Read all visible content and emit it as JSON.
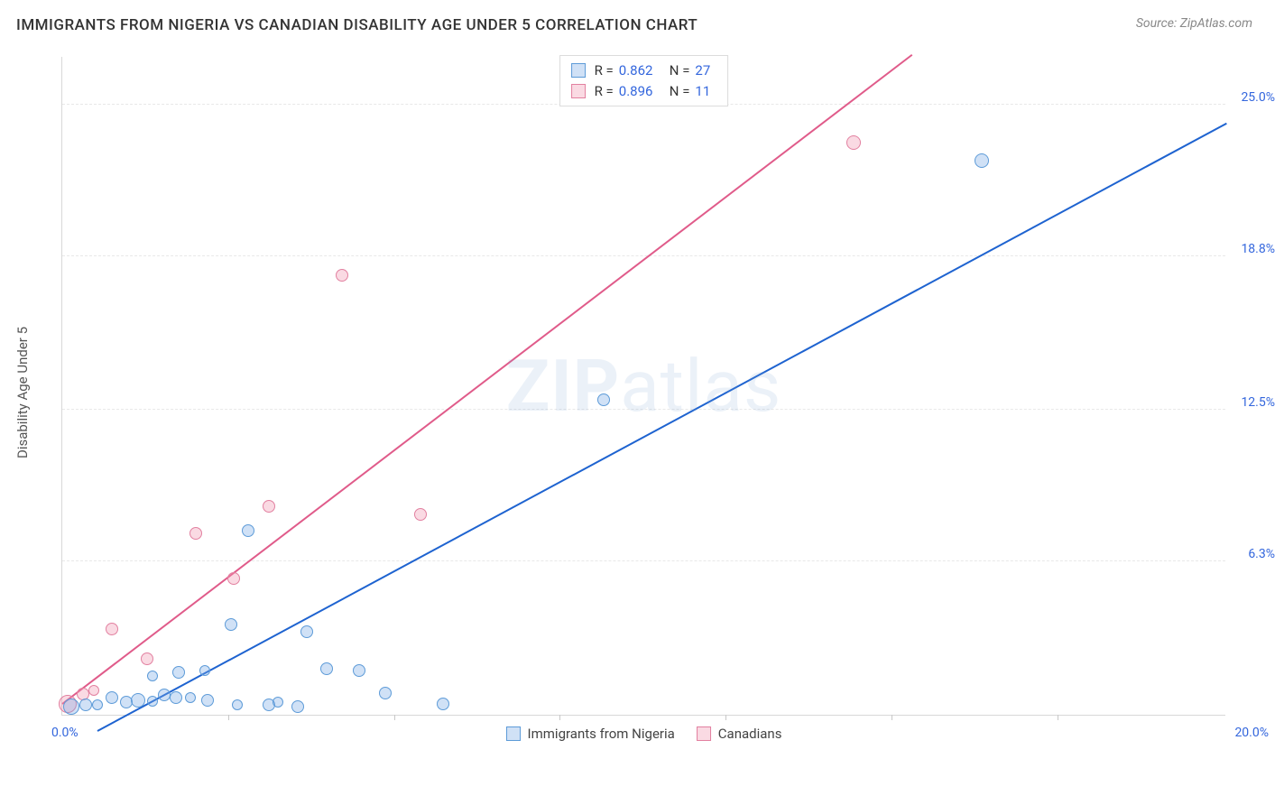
{
  "header": {
    "title": "IMMIGRANTS FROM NIGERIA VS CANADIAN DISABILITY AGE UNDER 5 CORRELATION CHART",
    "source_prefix": "Source: ",
    "source_name": "ZipAtlas.com"
  },
  "axes": {
    "y_title": "Disability Age Under 5",
    "x_origin": "0.0%",
    "x_end": "20.0%",
    "x_min": 0,
    "x_max": 20,
    "y_min": 0,
    "y_max": 27,
    "tick_color": "#3366dd",
    "y_ticks": [
      {
        "v": 6.3,
        "label": "6.3%"
      },
      {
        "v": 12.5,
        "label": "12.5%"
      },
      {
        "v": 18.8,
        "label": "18.8%"
      },
      {
        "v": 25.0,
        "label": "25.0%"
      }
    ],
    "x_tick_positions": [
      2.85,
      5.7,
      8.55,
      11.4,
      14.25,
      17.1
    ]
  },
  "series": {
    "blue": {
      "label": "Immigrants from Nigeria",
      "fill": "rgba(120,170,230,0.35)",
      "stroke": "#5d9bd8",
      "line_color": "#1e63d0",
      "R": "0.862",
      "N": "27",
      "trend": {
        "x1": 0.6,
        "y1": -0.7,
        "x2": 20.0,
        "y2": 24.2
      },
      "points": [
        {
          "x": 0.15,
          "y": 0.35,
          "r": 9
        },
        {
          "x": 0.4,
          "y": 0.4,
          "r": 7
        },
        {
          "x": 0.6,
          "y": 0.4,
          "r": 6
        },
        {
          "x": 0.85,
          "y": 0.7,
          "r": 7
        },
        {
          "x": 1.1,
          "y": 0.5,
          "r": 7
        },
        {
          "x": 1.3,
          "y": 0.6,
          "r": 8
        },
        {
          "x": 1.55,
          "y": 0.55,
          "r": 6
        },
        {
          "x": 1.75,
          "y": 0.8,
          "r": 7
        },
        {
          "x": 1.55,
          "y": 1.6,
          "r": 6
        },
        {
          "x": 1.95,
          "y": 0.7,
          "r": 7
        },
        {
          "x": 2.2,
          "y": 0.7,
          "r": 6
        },
        {
          "x": 2.0,
          "y": 1.75,
          "r": 7
        },
        {
          "x": 2.45,
          "y": 1.8,
          "r": 6
        },
        {
          "x": 2.5,
          "y": 0.6,
          "r": 7
        },
        {
          "x": 2.9,
          "y": 3.7,
          "r": 7
        },
        {
          "x": 3.0,
          "y": 0.4,
          "r": 6
        },
        {
          "x": 3.2,
          "y": 7.55,
          "r": 7
        },
        {
          "x": 3.55,
          "y": 0.4,
          "r": 7
        },
        {
          "x": 3.7,
          "y": 0.5,
          "r": 6
        },
        {
          "x": 4.05,
          "y": 0.35,
          "r": 7
        },
        {
          "x": 4.2,
          "y": 3.4,
          "r": 7
        },
        {
          "x": 4.55,
          "y": 1.9,
          "r": 7
        },
        {
          "x": 5.1,
          "y": 1.8,
          "r": 7
        },
        {
          "x": 5.55,
          "y": 0.9,
          "r": 7
        },
        {
          "x": 6.55,
          "y": 0.45,
          "r": 7
        },
        {
          "x": 9.3,
          "y": 12.9,
          "r": 7
        },
        {
          "x": 15.8,
          "y": 22.7,
          "r": 8
        }
      ]
    },
    "pink": {
      "label": "Canadians",
      "fill": "rgba(240,150,175,0.35)",
      "stroke": "#e280a0",
      "line_color": "#e05b8a",
      "R": "0.896",
      "N": "11",
      "trend": {
        "x1": 0.0,
        "y1": 0.4,
        "x2": 14.6,
        "y2": 27.0
      },
      "points": [
        {
          "x": 0.1,
          "y": 0.45,
          "r": 10
        },
        {
          "x": 0.35,
          "y": 0.85,
          "r": 7
        },
        {
          "x": 0.55,
          "y": 1.0,
          "r": 6
        },
        {
          "x": 0.85,
          "y": 3.5,
          "r": 7
        },
        {
          "x": 1.45,
          "y": 2.3,
          "r": 7
        },
        {
          "x": 2.3,
          "y": 7.45,
          "r": 7
        },
        {
          "x": 2.95,
          "y": 5.6,
          "r": 7
        },
        {
          "x": 3.55,
          "y": 8.55,
          "r": 7
        },
        {
          "x": 4.8,
          "y": 18.0,
          "r": 7
        },
        {
          "x": 6.15,
          "y": 8.2,
          "r": 7
        },
        {
          "x": 13.6,
          "y": 23.45,
          "r": 8
        }
      ]
    }
  },
  "watermark": {
    "bold": "ZIP",
    "rest": "atlas"
  },
  "colors": {
    "grid": "#e8e8e8",
    "axis": "#d8d8d8",
    "background": "#ffffff"
  }
}
